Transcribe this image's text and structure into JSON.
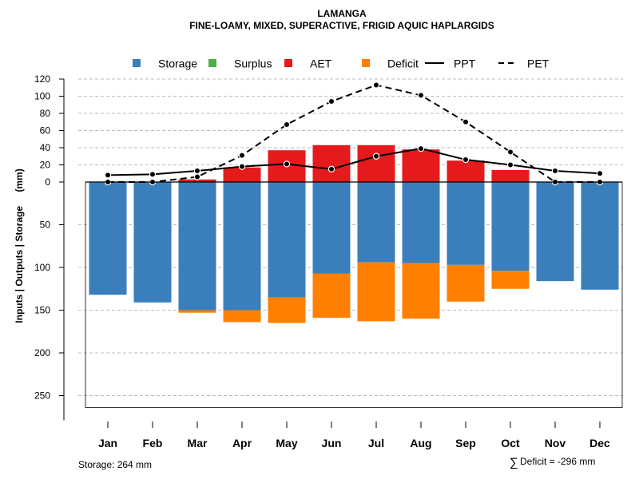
{
  "chart_data": {
    "type": "bar",
    "title": "LAMANGA",
    "subtitle": "FINE-LOAMY, MIXED, SUPERACTIVE, FRIGID AQUIC HAPLARGIDS",
    "ylabel": "Inputs | Outputs | Storage",
    "ylabel_units": "(mm)",
    "categories": [
      "Jan",
      "Feb",
      "Mar",
      "Apr",
      "May",
      "Jun",
      "Jul",
      "Aug",
      "Sep",
      "Oct",
      "Nov",
      "Dec"
    ],
    "upper_axis": {
      "ticks": [
        0,
        20,
        40,
        60,
        80,
        100,
        120
      ],
      "ylim": [
        0,
        120
      ]
    },
    "lower_axis": {
      "ticks": [
        50,
        100,
        150,
        200,
        250
      ],
      "ylim": [
        0,
        264
      ]
    },
    "legend": [
      {
        "key": "storage",
        "label": "Storage",
        "color": "#3a7fbb",
        "symbol": "square"
      },
      {
        "key": "surplus",
        "label": "Surplus",
        "color": "#4daf4a",
        "symbol": "square"
      },
      {
        "key": "aet",
        "label": "AET",
        "color": "#e41a1c",
        "symbol": "square"
      },
      {
        "key": "deficit",
        "label": "Deficit",
        "color": "#ff7f00",
        "symbol": "square"
      },
      {
        "key": "ppt",
        "label": "PPT",
        "color": "#000000",
        "symbol": "solid-line"
      },
      {
        "key": "pet",
        "label": "PET",
        "color": "#000000",
        "symbol": "dashed-line"
      }
    ],
    "series": [
      {
        "name": "Storage",
        "values": [
          132,
          141,
          150,
          150,
          135,
          107,
          94,
          95,
          97,
          104,
          116,
          126
        ]
      },
      {
        "name": "Deficit",
        "values": [
          0,
          0,
          3,
          14,
          30,
          52,
          69,
          65,
          43,
          21,
          0,
          0
        ]
      },
      {
        "name": "Surplus",
        "values": [
          0,
          0,
          0,
          0,
          0,
          0,
          0,
          0,
          0,
          0,
          0,
          0
        ]
      },
      {
        "name": "AET",
        "values": [
          0,
          0,
          3,
          17,
          37,
          43,
          43,
          38,
          25,
          14,
          0,
          0
        ]
      },
      {
        "name": "PPT",
        "values": [
          8,
          9,
          13,
          18,
          21,
          15,
          30,
          39,
          26,
          20,
          13,
          10
        ]
      },
      {
        "name": "PET",
        "values": [
          0,
          0,
          6,
          31,
          67,
          94,
          113,
          101,
          70,
          35,
          0,
          0
        ]
      }
    ],
    "notes": {
      "storage": "Storage: 264 mm",
      "deficit": "Deficit = -296 mm",
      "deficit_symbol": "∑"
    }
  }
}
